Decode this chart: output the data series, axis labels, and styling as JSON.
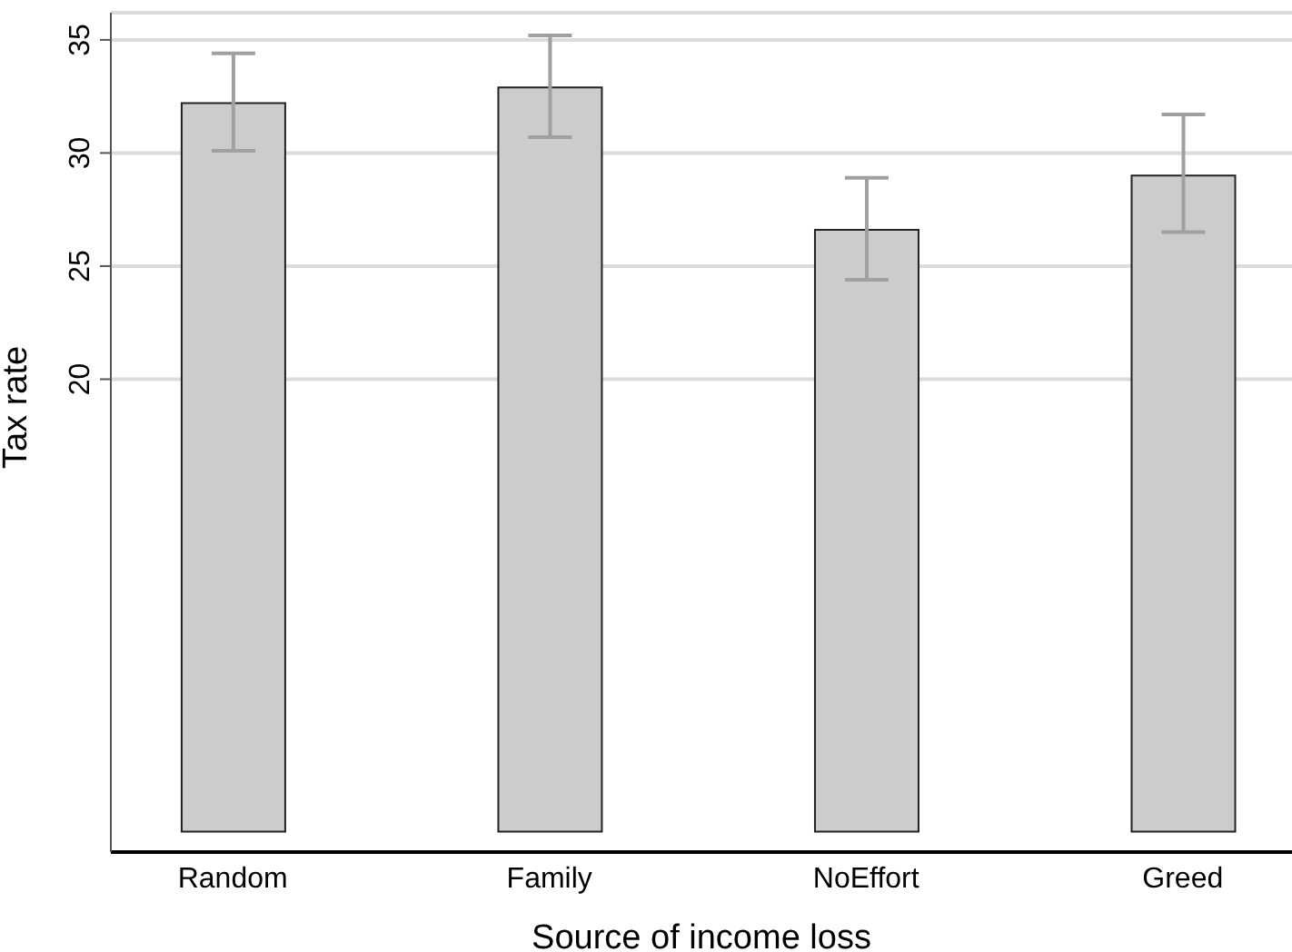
{
  "chart_data": {
    "type": "bar",
    "xlabel": "Source of income loss",
    "ylabel": "Tax rate",
    "categories": [
      "Random",
      "Family",
      "NoEffort",
      "Greed"
    ],
    "values": [
      32.2,
      32.9,
      26.6,
      29.0
    ],
    "errors": [
      [
        30.1,
        34.4
      ],
      [
        30.7,
        35.2
      ],
      [
        24.4,
        28.9
      ],
      [
        26.5,
        31.7
      ]
    ],
    "color": "#cccccc",
    "ylim": [
      -0.9,
      36.2
    ],
    "yticks": [
      20,
      25,
      30,
      35
    ],
    "grid": "y",
    "legend": false
  }
}
